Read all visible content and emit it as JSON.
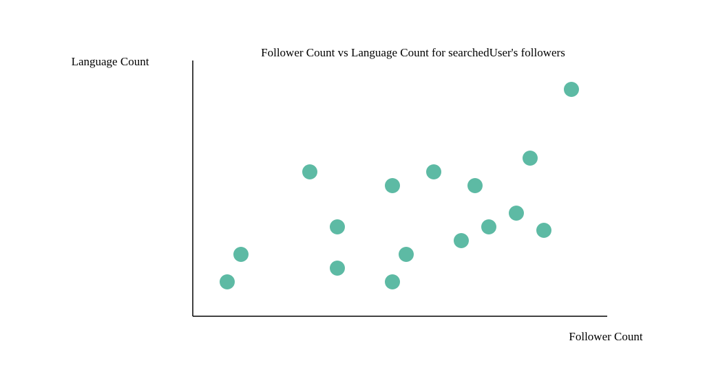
{
  "chart_data": {
    "type": "scatter",
    "title": "Follower Count vs Language Count for searchedUser's followers",
    "xlabel": "Follower Count",
    "ylabel": "Language Count",
    "xlim": [
      0,
      30
    ],
    "ylim": [
      0,
      18.5
    ],
    "grid": false,
    "axis_ticks_visible": false,
    "point_color": "#5dbaa4",
    "points": [
      {
        "x": 2.5,
        "y": 2.5
      },
      {
        "x": 3.5,
        "y": 4.5
      },
      {
        "x": 8.5,
        "y": 10.5
      },
      {
        "x": 10.5,
        "y": 3.5
      },
      {
        "x": 10.5,
        "y": 6.5
      },
      {
        "x": 14.5,
        "y": 2.5
      },
      {
        "x": 14.5,
        "y": 9.5
      },
      {
        "x": 15.5,
        "y": 4.5
      },
      {
        "x": 17.5,
        "y": 10.5
      },
      {
        "x": 19.5,
        "y": 5.5
      },
      {
        "x": 20.5,
        "y": 9.5
      },
      {
        "x": 21.5,
        "y": 6.5
      },
      {
        "x": 23.5,
        "y": 7.5
      },
      {
        "x": 24.5,
        "y": 11.5
      },
      {
        "x": 25.5,
        "y": 6.25
      },
      {
        "x": 27.5,
        "y": 16.5
      }
    ]
  }
}
